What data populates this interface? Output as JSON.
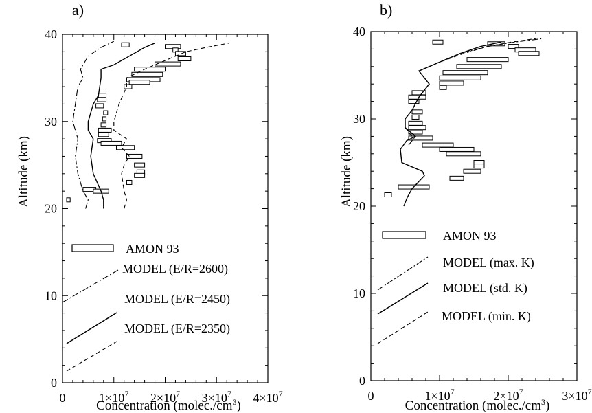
{
  "chart_data": [
    {
      "type": "line",
      "panel_label": "a)",
      "xlabel": "Concentration (molec./cm",
      "xlabel_sup": "3",
      "xlabel_close": ")",
      "ylabel": "Altitude (km)",
      "xlim": [
        0,
        40000000
      ],
      "ylim": [
        0,
        40
      ],
      "xticks": [
        {
          "value": 0,
          "label": "0"
        },
        {
          "value": 10000000,
          "label": "1×10",
          "exp": "7"
        },
        {
          "value": 20000000,
          "label": "2×10",
          "exp": "7"
        },
        {
          "value": 30000000,
          "label": "3×10",
          "exp": "7"
        },
        {
          "value": 40000000,
          "label": "4×10",
          "exp": "7"
        }
      ],
      "yticks": [
        {
          "value": 0,
          "label": "0"
        },
        {
          "value": 10,
          "label": "10"
        },
        {
          "value": 20,
          "label": "20"
        },
        {
          "value": 30,
          "label": "30"
        },
        {
          "value": 40,
          "label": "40"
        }
      ],
      "legend": [
        {
          "label": "AMON 93",
          "style": "box"
        },
        {
          "label": "MODEL (E/R=2600)",
          "style": "dashdot"
        },
        {
          "label": "MODEL (E/R=2450)",
          "style": "solid"
        },
        {
          "label": "MODEL (E/R=2350)",
          "style": "dashed"
        }
      ],
      "series": [
        {
          "style": "dashdot",
          "points": [
            [
              4500000.0,
              20
            ],
            [
              5000000.0,
              21
            ],
            [
              4000000.0,
              22
            ],
            [
              3000000.0,
              24
            ],
            [
              2500000.0,
              26
            ],
            [
              3000000.0,
              28
            ],
            [
              2000000.0,
              30
            ],
            [
              2500000.0,
              32
            ],
            [
              3000000.0,
              34
            ],
            [
              4000000.0,
              35
            ],
            [
              3500000.0,
              36
            ],
            [
              5000000.0,
              37.5
            ],
            [
              7500000.0,
              38.5
            ],
            [
              10000000.0,
              39.2
            ]
          ]
        },
        {
          "style": "solid",
          "points": [
            [
              8000000.0,
              20
            ],
            [
              8000000.0,
              21
            ],
            [
              7500000.0,
              22
            ],
            [
              6000000.0,
              24
            ],
            [
              5500000.0,
              26
            ],
            [
              6000000.0,
              28
            ],
            [
              5000000.0,
              29
            ],
            [
              5000000.0,
              30
            ],
            [
              6000000.0,
              32
            ],
            [
              7000000.0,
              33
            ],
            [
              7500000.0,
              35
            ],
            [
              7500000.0,
              36
            ],
            [
              10000000.0,
              36.5
            ],
            [
              13000000.0,
              37.5
            ],
            [
              16000000.0,
              38.5
            ],
            [
              18000000.0,
              39
            ]
          ]
        },
        {
          "style": "dashed",
          "points": [
            [
              12000000.0,
              20
            ],
            [
              12500000.0,
              21
            ],
            [
              12000000.0,
              22
            ],
            [
              11500000.0,
              24
            ],
            [
              12000000.0,
              25
            ],
            [
              13000000.0,
              26
            ],
            [
              11500000.0,
              27
            ],
            [
              12500000.0,
              28
            ],
            [
              10000000.0,
              29
            ],
            [
              10000000.0,
              30
            ],
            [
              11000000.0,
              32
            ],
            [
              12500000.0,
              34
            ],
            [
              12500000.0,
              35
            ],
            [
              16000000.0,
              36
            ],
            [
              20000000.0,
              37
            ],
            [
              24000000.0,
              38
            ],
            [
              28000000.0,
              38.5
            ],
            [
              32500000.0,
              39
            ]
          ]
        }
      ],
      "boxes": [
        [
          11500000.0,
          13000000.0,
          38.8
        ],
        [
          20000000.0,
          23000000.0,
          38.6
        ],
        [
          21500000.0,
          22500000.0,
          38.2
        ],
        [
          22000000.0,
          24000000.0,
          37.8
        ],
        [
          22500000.0,
          25000000.0,
          37.2
        ],
        [
          18000000.0,
          23000000.0,
          36.6
        ],
        [
          14000000.0,
          20000000.0,
          36
        ],
        [
          13500000.0,
          19500000.0,
          35.4
        ],
        [
          12500000.0,
          19000000.0,
          34.8
        ],
        [
          13000000.0,
          17000000.0,
          34.5
        ],
        [
          12000000.0,
          13500000.0,
          34
        ],
        [
          7000000.0,
          8500000.0,
          33
        ],
        [
          6800000.0,
          8500000.0,
          32.5
        ],
        [
          6500000.0,
          8000000.0,
          31.8
        ],
        [
          8000000.0,
          8800000.0,
          31
        ],
        [
          7800000.0,
          8500000.0,
          30.3
        ],
        [
          7500000.0,
          8500000.0,
          29.6
        ],
        [
          7000000.0,
          9500000.0,
          29
        ],
        [
          7000000.0,
          9000000.0,
          28.5
        ],
        [
          6800000.0,
          9500000.0,
          27.8
        ],
        [
          7500000.0,
          11500000.0,
          27.5
        ],
        [
          10500000.0,
          14000000.0,
          27
        ],
        [
          12500000.0,
          15500000.0,
          26
        ],
        [
          14000000.0,
          16000000.0,
          25
        ],
        [
          14500000.0,
          16000000.0,
          24.2
        ],
        [
          14000000.0,
          16000000.0,
          23.8
        ],
        [
          12500000.0,
          13500000.0,
          23
        ],
        [
          4000000.0,
          6500000.0,
          22.2
        ],
        [
          6000000.0,
          9000000.0,
          22
        ],
        [
          800000.0,
          1500000.0,
          21
        ]
      ]
    },
    {
      "type": "line",
      "panel_label": "b)",
      "xlabel": "Concentration (molec./cm",
      "xlabel_sup": "3",
      "xlabel_close": ")",
      "ylabel": "Altitude (km)",
      "xlim": [
        0,
        30000000
      ],
      "ylim": [
        0,
        40
      ],
      "xticks": [
        {
          "value": 0,
          "label": "0"
        },
        {
          "value": 10000000,
          "label": "1×10",
          "exp": "7"
        },
        {
          "value": 20000000,
          "label": "2×10",
          "exp": "7"
        },
        {
          "value": 30000000,
          "label": "3×10",
          "exp": "7"
        }
      ],
      "yticks": [
        {
          "value": 0,
          "label": "0"
        },
        {
          "value": 10,
          "label": "10"
        },
        {
          "value": 20,
          "label": "20"
        },
        {
          "value": 30,
          "label": "30"
        },
        {
          "value": 40,
          "label": "40"
        }
      ],
      "legend": [
        {
          "label": "AMON 93",
          "style": "box"
        },
        {
          "label": "MODEL (max. K)",
          "style": "dashdot"
        },
        {
          "label": "MODEL (std. K)",
          "style": "solid"
        },
        {
          "label": "MODEL (min. K)",
          "style": "dashed"
        }
      ],
      "series": [
        {
          "style": "dashdot",
          "points": [
            [
              5500000.0,
              27
            ],
            [
              6500000.0,
              28
            ],
            [
              5000000.0,
              29
            ],
            [
              5000000.0,
              30
            ],
            [
              6000000.0,
              31
            ],
            [
              7000000.0,
              32.5
            ],
            [
              8500000.0,
              34
            ],
            [
              7000000.0,
              35.5
            ],
            [
              10000000.0,
              36.5
            ],
            [
              13000000.0,
              37.5
            ],
            [
              17000000.0,
              38.3
            ],
            [
              21000000.0,
              38.8
            ],
            [
              25000000.0,
              39.2
            ]
          ]
        },
        {
          "style": "solid",
          "points": [
            [
              4800000.0,
              20
            ],
            [
              5300000.0,
              21
            ],
            [
              6000000.0,
              22
            ],
            [
              7800000.0,
              23.5
            ],
            [
              7500000.0,
              24
            ],
            [
              4500000.0,
              25
            ],
            [
              4300000.0,
              26.5
            ],
            [
              5200000.0,
              27.5
            ],
            [
              6500000.0,
              28
            ],
            [
              5000000.0,
              29
            ],
            [
              5000000.0,
              30
            ],
            [
              6000000.0,
              31
            ],
            [
              7000000.0,
              32.5
            ],
            [
              8500000.0,
              34
            ],
            [
              7000000.0,
              35.5
            ],
            [
              10000000.0,
              36.5
            ],
            [
              13000000.0,
              37.5
            ],
            [
              16000000.0,
              38.3
            ],
            [
              19000000.0,
              38.8
            ]
          ]
        },
        {
          "style": "dashed",
          "points": [
            [
              6000000.0,
              28
            ],
            [
              5000000.0,
              29
            ],
            [
              5000000.0,
              30
            ],
            [
              6000000.0,
              31
            ],
            [
              7000000.0,
              32.5
            ],
            [
              8500000.0,
              34
            ],
            [
              7000000.0,
              35.5
            ],
            [
              10000000.0,
              36.5
            ],
            [
              13500000.0,
              37.5
            ],
            [
              17000000.0,
              38.3
            ],
            [
              20500000.0,
              38.8
            ],
            [
              24000000.0,
              39.2
            ]
          ]
        }
      ],
      "boxes": [
        [
          9000000.0,
          10500000.0,
          38.8
        ],
        [
          17000000.0,
          19500000.0,
          38.6
        ],
        [
          20000000.0,
          21500000.0,
          38.3
        ],
        [
          21000000.0,
          24000000.0,
          37.9
        ],
        [
          21500000.0,
          24500000.0,
          37.5
        ],
        [
          14000000.0,
          20000000.0,
          36.8
        ],
        [
          12500000.0,
          19000000.0,
          36
        ],
        [
          10500000.0,
          17000000.0,
          35.3
        ],
        [
          10000000.0,
          16000000.0,
          34.7
        ],
        [
          10000000.0,
          13500000.0,
          34.1
        ],
        [
          10000000.0,
          11000000.0,
          33.6
        ],
        [
          6000000.0,
          8000000.0,
          33
        ],
        [
          5500000.0,
          8000000.0,
          32.5
        ],
        [
          5500000.0,
          7000000.0,
          32
        ],
        [
          6000000.0,
          7500000.0,
          30.8
        ],
        [
          6000000.0,
          7000000.0,
          30.2
        ],
        [
          5500000.0,
          7500000.0,
          29.5
        ],
        [
          5500000.0,
          8000000.0,
          29
        ],
        [
          5500000.0,
          7500000.0,
          28.5
        ],
        [
          5500000.0,
          9000000.0,
          27.8
        ],
        [
          7500000.0,
          12000000.0,
          27
        ],
        [
          10000000.0,
          15000000.0,
          26.5
        ],
        [
          11000000.0,
          16000000.0,
          26
        ],
        [
          15000000.0,
          16500000.0,
          25
        ],
        [
          15000000.0,
          16500000.0,
          24.6
        ],
        [
          13500000.0,
          16000000.0,
          24
        ],
        [
          11500000.0,
          13500000.0,
          23.2
        ],
        [
          4000000.0,
          8500000.0,
          22.2
        ],
        [
          2000000.0,
          3000000.0,
          21.3
        ]
      ]
    }
  ]
}
